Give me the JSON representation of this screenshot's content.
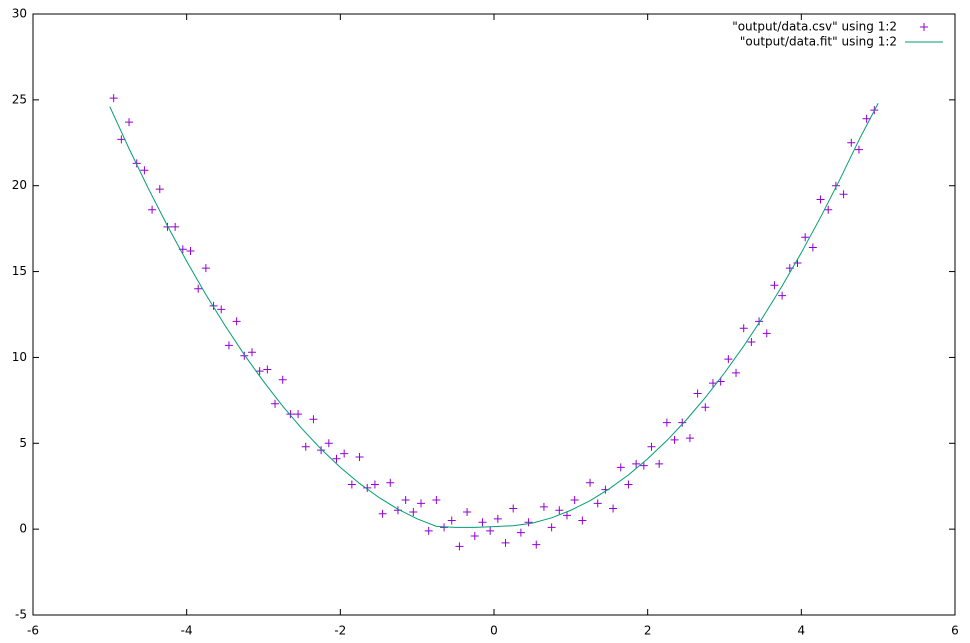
{
  "chart_data": {
    "type": "scatter",
    "xlim": [
      -6,
      6
    ],
    "ylim": [
      -5,
      30
    ],
    "xticks": [
      -6,
      -4,
      -2,
      0,
      2,
      4,
      6
    ],
    "yticks": [
      -5,
      0,
      5,
      10,
      15,
      20,
      25,
      30
    ],
    "legend": "top-right",
    "series": [
      {
        "name": "\"output/data.csv\" using 1:2",
        "color": "#9400d3",
        "kind": "points",
        "x": [
          -4.95,
          -4.85,
          -4.75,
          -4.65,
          -4.55,
          -4.45,
          -4.35,
          -4.25,
          -4.15,
          -4.05,
          -3.95,
          -3.85,
          -3.75,
          -3.65,
          -3.55,
          -3.45,
          -3.35,
          -3.25,
          -3.15,
          -3.05,
          -2.95,
          -2.85,
          -2.75,
          -2.65,
          -2.55,
          -2.45,
          -2.35,
          -2.25,
          -2.15,
          -2.05,
          -1.95,
          -1.85,
          -1.75,
          -1.65,
          -1.55,
          -1.45,
          -1.35,
          -1.25,
          -1.15,
          -1.05,
          -0.95,
          -0.85,
          -0.75,
          -0.65,
          -0.55,
          -0.45,
          -0.35,
          -0.25,
          -0.15,
          -0.05,
          0.05,
          0.15,
          0.25,
          0.35,
          0.45,
          0.55,
          0.65,
          0.75,
          0.85,
          0.95,
          1.05,
          1.15,
          1.25,
          1.35,
          1.45,
          1.55,
          1.65,
          1.75,
          1.85,
          1.95,
          2.05,
          2.15,
          2.25,
          2.35,
          2.45,
          2.55,
          2.65,
          2.75,
          2.85,
          2.95,
          3.05,
          3.15,
          3.25,
          3.35,
          3.45,
          3.55,
          3.65,
          3.75,
          3.85,
          3.95,
          4.05,
          4.15,
          4.25,
          4.35,
          4.45,
          4.55,
          4.65,
          4.75,
          4.85,
          4.95
        ],
        "values": [
          25.1,
          22.7,
          23.7,
          21.3,
          20.9,
          18.6,
          19.8,
          17.6,
          17.6,
          16.3,
          16.2,
          14.0,
          15.2,
          13.0,
          12.8,
          10.7,
          12.1,
          10.1,
          10.3,
          9.2,
          9.3,
          7.3,
          8.7,
          6.7,
          6.7,
          4.8,
          6.4,
          4.6,
          5.0,
          4.1,
          4.4,
          2.6,
          4.2,
          2.4,
          2.6,
          0.9,
          2.7,
          1.1,
          1.7,
          1.0,
          1.5,
          -0.1,
          1.7,
          0.1,
          0.5,
          -1.0,
          1.0,
          -0.4,
          0.4,
          -0.1,
          0.6,
          -0.8,
          1.2,
          -0.2,
          0.4,
          -0.9,
          1.3,
          0.1,
          1.1,
          0.8,
          1.7,
          0.5,
          2.7,
          1.5,
          2.3,
          1.2,
          3.6,
          2.6,
          3.8,
          3.7,
          4.8,
          3.8,
          6.2,
          5.2,
          6.2,
          5.3,
          7.9,
          7.1,
          8.5,
          8.6,
          9.9,
          9.1,
          11.7,
          10.9,
          12.1,
          11.4,
          14.2,
          13.6,
          15.2,
          15.5,
          17.0,
          16.4,
          19.2,
          18.6,
          20.0,
          19.5,
          22.5,
          22.1,
          23.9,
          24.4
        ]
      },
      {
        "name": "\"output/data.fit\" using 1:2",
        "color": "#009e73",
        "kind": "line",
        "x": [
          -5,
          -4.75,
          -4.5,
          -4.25,
          -4,
          -3.75,
          -3.5,
          -3.25,
          -3,
          -2.75,
          -2.5,
          -2.25,
          -2,
          -1.75,
          -1.5,
          -1.25,
          -1,
          -0.75,
          -0.5,
          -0.25,
          0,
          0.25,
          0.5,
          0.75,
          1,
          1.25,
          1.5,
          1.75,
          2,
          2.25,
          2.5,
          2.75,
          3,
          3.25,
          3.5,
          3.75,
          4,
          4.25,
          4.5,
          4.75,
          5
        ],
        "values": [
          24.6,
          22.16,
          19.85,
          17.66,
          15.6,
          13.66,
          11.85,
          10.16,
          8.6,
          7.16,
          5.85,
          4.66,
          3.6,
          2.66,
          1.85,
          1.16,
          0.6,
          0.16,
          0.1,
          0.1,
          0.15,
          0.2,
          0.35,
          0.66,
          1.1,
          1.66,
          2.35,
          3.16,
          4.1,
          5.16,
          6.35,
          7.66,
          9.1,
          10.66,
          12.35,
          14.16,
          16.1,
          18.16,
          20.35,
          22.66,
          24.8
        ]
      }
    ]
  }
}
